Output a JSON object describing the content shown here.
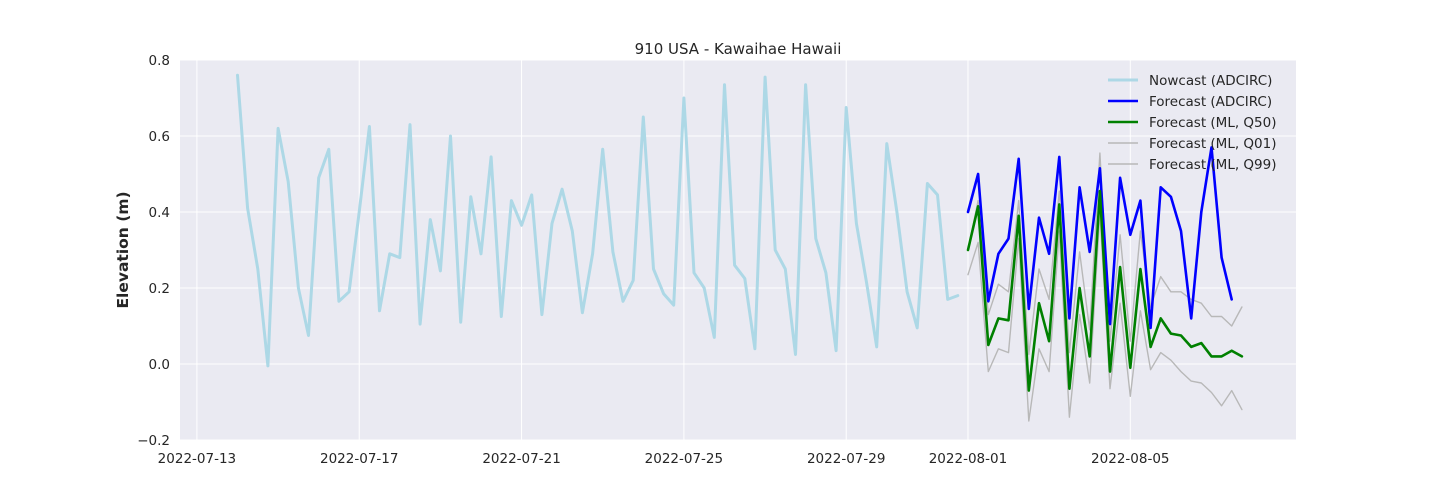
{
  "chart_data": {
    "type": "line",
    "title": "910 USA - Kawaihae Hawaii",
    "xlabel": "",
    "ylabel": "Elevation (m)",
    "x_type": "date",
    "xlim": [
      "2022-07-12 14:00",
      "2022-08-09 02:00"
    ],
    "ylim": [
      -0.2,
      0.8
    ],
    "grid": true,
    "legend_position": "top-right",
    "x_ticks": [
      {
        "value": "2022-07-13 00:00",
        "label": "2022-07-13"
      },
      {
        "value": "2022-07-17 00:00",
        "label": "2022-07-17"
      },
      {
        "value": "2022-07-21 00:00",
        "label": "2022-07-21"
      },
      {
        "value": "2022-07-25 00:00",
        "label": "2022-07-25"
      },
      {
        "value": "2022-07-29 00:00",
        "label": "2022-07-29"
      },
      {
        "value": "2022-08-01 00:00",
        "label": "2022-08-01"
      },
      {
        "value": "2022-08-05 00:00",
        "label": "2022-08-05"
      }
    ],
    "y_ticks": [
      {
        "value": -0.2,
        "label": "−0.2"
      },
      {
        "value": 0.0,
        "label": "0.0"
      },
      {
        "value": 0.2,
        "label": "0.2"
      },
      {
        "value": 0.4,
        "label": "0.4"
      },
      {
        "value": 0.6,
        "label": "0.6"
      },
      {
        "value": 0.8,
        "label": "0.8"
      }
    ],
    "colors": {
      "background": "#eaeaf2",
      "grid": "#ffffff",
      "nowcast": "#add8e6",
      "forecast_adcirc": "#0000ff",
      "forecast_q50": "#008000",
      "forecast_band": "#b8b8b8"
    },
    "series": [
      {
        "name": "Nowcast (ADCIRC)",
        "color": "#add8e6",
        "width": 3,
        "points": [
          [
            "2022-07-14 00:00",
            0.76
          ],
          [
            "2022-07-14 06:00",
            0.41
          ],
          [
            "2022-07-14 12:00",
            0.25
          ],
          [
            "2022-07-14 18:00",
            -0.005
          ],
          [
            "2022-07-15 00:00",
            0.62
          ],
          [
            "2022-07-15 06:00",
            0.48
          ],
          [
            "2022-07-15 12:00",
            0.2
          ],
          [
            "2022-07-15 18:00",
            0.075
          ],
          [
            "2022-07-16 00:00",
            0.49
          ],
          [
            "2022-07-16 06:00",
            0.565
          ],
          [
            "2022-07-16 12:00",
            0.165
          ],
          [
            "2022-07-16 18:00",
            0.19
          ],
          [
            "2022-07-17 00:00",
            0.4
          ],
          [
            "2022-07-17 06:00",
            0.625
          ],
          [
            "2022-07-17 12:00",
            0.14
          ],
          [
            "2022-07-17 18:00",
            0.29
          ],
          [
            "2022-07-18 00:00",
            0.28
          ],
          [
            "2022-07-18 06:00",
            0.63
          ],
          [
            "2022-07-18 12:00",
            0.105
          ],
          [
            "2022-07-18 18:00",
            0.38
          ],
          [
            "2022-07-19 00:00",
            0.245
          ],
          [
            "2022-07-19 06:00",
            0.6
          ],
          [
            "2022-07-19 12:00",
            0.11
          ],
          [
            "2022-07-19 18:00",
            0.44
          ],
          [
            "2022-07-20 00:00",
            0.29
          ],
          [
            "2022-07-20 06:00",
            0.545
          ],
          [
            "2022-07-20 12:00",
            0.125
          ],
          [
            "2022-07-20 18:00",
            0.43
          ],
          [
            "2022-07-21 00:00",
            0.365
          ],
          [
            "2022-07-21 06:00",
            0.445
          ],
          [
            "2022-07-21 12:00",
            0.13
          ],
          [
            "2022-07-21 18:00",
            0.37
          ],
          [
            "2022-07-22 00:00",
            0.46
          ],
          [
            "2022-07-22 06:00",
            0.35
          ],
          [
            "2022-07-22 12:00",
            0.135
          ],
          [
            "2022-07-22 18:00",
            0.29
          ],
          [
            "2022-07-23 00:00",
            0.565
          ],
          [
            "2022-07-23 06:00",
            0.295
          ],
          [
            "2022-07-23 12:00",
            0.165
          ],
          [
            "2022-07-23 18:00",
            0.22
          ],
          [
            "2022-07-24 00:00",
            0.65
          ],
          [
            "2022-07-24 06:00",
            0.25
          ],
          [
            "2022-07-24 12:00",
            0.185
          ],
          [
            "2022-07-24 18:00",
            0.155
          ],
          [
            "2022-07-25 00:00",
            0.7
          ],
          [
            "2022-07-25 06:00",
            0.24
          ],
          [
            "2022-07-25 12:00",
            0.2
          ],
          [
            "2022-07-25 18:00",
            0.07
          ],
          [
            "2022-07-26 00:00",
            0.735
          ],
          [
            "2022-07-26 06:00",
            0.26
          ],
          [
            "2022-07-26 12:00",
            0.225
          ],
          [
            "2022-07-26 18:00",
            0.04
          ],
          [
            "2022-07-27 00:00",
            0.755
          ],
          [
            "2022-07-27 06:00",
            0.3
          ],
          [
            "2022-07-27 12:00",
            0.25
          ],
          [
            "2022-07-27 18:00",
            0.025
          ],
          [
            "2022-07-28 00:00",
            0.735
          ],
          [
            "2022-07-28 06:00",
            0.33
          ],
          [
            "2022-07-28 12:00",
            0.24
          ],
          [
            "2022-07-28 18:00",
            0.035
          ],
          [
            "2022-07-29 00:00",
            0.675
          ],
          [
            "2022-07-29 06:00",
            0.37
          ],
          [
            "2022-07-29 12:00",
            0.215
          ],
          [
            "2022-07-29 18:00",
            0.045
          ],
          [
            "2022-07-30 00:00",
            0.58
          ],
          [
            "2022-07-30 06:00",
            0.4
          ],
          [
            "2022-07-30 12:00",
            0.19
          ],
          [
            "2022-07-30 18:00",
            0.095
          ],
          [
            "2022-07-31 00:00",
            0.475
          ],
          [
            "2022-07-31 06:00",
            0.445
          ],
          [
            "2022-07-31 12:00",
            0.17
          ],
          [
            "2022-07-31 18:00",
            0.18
          ]
        ]
      },
      {
        "name": "Forecast (ADCIRC)",
        "color": "#0000ff",
        "width": 2.6,
        "points": [
          [
            "2022-08-01 00:00",
            0.4
          ],
          [
            "2022-08-01 06:00",
            0.5
          ],
          [
            "2022-08-01 12:00",
            0.165
          ],
          [
            "2022-08-01 18:00",
            0.29
          ],
          [
            "2022-08-02 00:00",
            0.33
          ],
          [
            "2022-08-02 06:00",
            0.54
          ],
          [
            "2022-08-02 12:00",
            0.145
          ],
          [
            "2022-08-02 18:00",
            0.385
          ],
          [
            "2022-08-03 00:00",
            0.29
          ],
          [
            "2022-08-03 06:00",
            0.545
          ],
          [
            "2022-08-03 12:00",
            0.12
          ],
          [
            "2022-08-03 18:00",
            0.465
          ],
          [
            "2022-08-04 00:00",
            0.295
          ],
          [
            "2022-08-04 06:00",
            0.515
          ],
          [
            "2022-08-04 12:00",
            0.105
          ],
          [
            "2022-08-04 18:00",
            0.49
          ],
          [
            "2022-08-05 00:00",
            0.34
          ],
          [
            "2022-08-05 06:00",
            0.43
          ],
          [
            "2022-08-05 12:00",
            0.095
          ],
          [
            "2022-08-05 18:00",
            0.465
          ],
          [
            "2022-08-06 00:00",
            0.44
          ],
          [
            "2022-08-06 06:00",
            0.35
          ],
          [
            "2022-08-06 12:00",
            0.12
          ],
          [
            "2022-08-06 18:00",
            0.4
          ],
          [
            "2022-08-07 00:00",
            0.57
          ],
          [
            "2022-08-07 06:00",
            0.28
          ],
          [
            "2022-08-07 12:00",
            0.17
          ]
        ]
      },
      {
        "name": "Forecast (ML, Q50)",
        "color": "#008000",
        "width": 2.6,
        "points": [
          [
            "2022-08-01 00:00",
            0.3
          ],
          [
            "2022-08-01 06:00",
            0.415
          ],
          [
            "2022-08-01 12:00",
            0.05
          ],
          [
            "2022-08-01 18:00",
            0.12
          ],
          [
            "2022-08-02 00:00",
            0.115
          ],
          [
            "2022-08-02 06:00",
            0.39
          ],
          [
            "2022-08-02 12:00",
            -0.07
          ],
          [
            "2022-08-02 18:00",
            0.16
          ],
          [
            "2022-08-03 00:00",
            0.06
          ],
          [
            "2022-08-03 06:00",
            0.42
          ],
          [
            "2022-08-03 12:00",
            -0.065
          ],
          [
            "2022-08-03 18:00",
            0.2
          ],
          [
            "2022-08-04 00:00",
            0.02
          ],
          [
            "2022-08-04 06:00",
            0.455
          ],
          [
            "2022-08-04 12:00",
            -0.02
          ],
          [
            "2022-08-04 18:00",
            0.255
          ],
          [
            "2022-08-05 00:00",
            -0.01
          ],
          [
            "2022-08-05 06:00",
            0.25
          ],
          [
            "2022-08-05 12:00",
            0.045
          ],
          [
            "2022-08-05 18:00",
            0.12
          ],
          [
            "2022-08-06 00:00",
            0.08
          ],
          [
            "2022-08-06 06:00",
            0.075
          ],
          [
            "2022-08-06 12:00",
            0.045
          ],
          [
            "2022-08-06 18:00",
            0.055
          ],
          [
            "2022-08-07 00:00",
            0.02
          ],
          [
            "2022-08-07 06:00",
            0.02
          ],
          [
            "2022-08-07 12:00",
            0.035
          ],
          [
            "2022-08-07 18:00",
            0.02
          ]
        ]
      },
      {
        "name": "Forecast (ML, Q01)",
        "color": "#b8b8b8",
        "width": 1.4,
        "points": [
          [
            "2022-08-01 00:00",
            0.235
          ],
          [
            "2022-08-01 06:00",
            0.32
          ],
          [
            "2022-08-01 12:00",
            -0.02
          ],
          [
            "2022-08-01 18:00",
            0.04
          ],
          [
            "2022-08-02 00:00",
            0.03
          ],
          [
            "2022-08-02 06:00",
            0.33
          ],
          [
            "2022-08-02 12:00",
            -0.15
          ],
          [
            "2022-08-02 18:00",
            0.04
          ],
          [
            "2022-08-03 00:00",
            -0.02
          ],
          [
            "2022-08-03 06:00",
            0.35
          ],
          [
            "2022-08-03 12:00",
            -0.14
          ],
          [
            "2022-08-03 18:00",
            0.13
          ],
          [
            "2022-08-04 00:00",
            -0.05
          ],
          [
            "2022-08-04 06:00",
            0.4
          ],
          [
            "2022-08-04 12:00",
            -0.065
          ],
          [
            "2022-08-04 18:00",
            0.16
          ],
          [
            "2022-08-05 00:00",
            -0.085
          ],
          [
            "2022-08-05 06:00",
            0.14
          ],
          [
            "2022-08-05 12:00",
            -0.015
          ],
          [
            "2022-08-05 18:00",
            0.03
          ],
          [
            "2022-08-06 00:00",
            0.01
          ],
          [
            "2022-08-06 06:00",
            -0.02
          ],
          [
            "2022-08-06 12:00",
            -0.045
          ],
          [
            "2022-08-06 18:00",
            -0.05
          ],
          [
            "2022-08-07 00:00",
            -0.075
          ],
          [
            "2022-08-07 06:00",
            -0.11
          ],
          [
            "2022-08-07 12:00",
            -0.07
          ],
          [
            "2022-08-07 18:00",
            -0.12
          ]
        ]
      },
      {
        "name": "Forecast (ML, Q99)",
        "color": "#b8b8b8",
        "width": 1.4,
        "points": [
          [
            "2022-08-01 00:00",
            0.3
          ],
          [
            "2022-08-01 06:00",
            0.43
          ],
          [
            "2022-08-01 12:00",
            0.13
          ],
          [
            "2022-08-01 18:00",
            0.21
          ],
          [
            "2022-08-02 00:00",
            0.19
          ],
          [
            "2022-08-02 06:00",
            0.43
          ],
          [
            "2022-08-02 12:00",
            0.025
          ],
          [
            "2022-08-02 18:00",
            0.25
          ],
          [
            "2022-08-03 00:00",
            0.17
          ],
          [
            "2022-08-03 06:00",
            0.455
          ],
          [
            "2022-08-03 12:00",
            0.03
          ],
          [
            "2022-08-03 18:00",
            0.295
          ],
          [
            "2022-08-04 00:00",
            0.09
          ],
          [
            "2022-08-04 06:00",
            0.555
          ],
          [
            "2022-08-04 12:00",
            0.06
          ],
          [
            "2022-08-04 18:00",
            0.34
          ],
          [
            "2022-08-05 00:00",
            0.06
          ],
          [
            "2022-08-05 06:00",
            0.35
          ],
          [
            "2022-08-05 12:00",
            0.15
          ],
          [
            "2022-08-05 18:00",
            0.23
          ],
          [
            "2022-08-06 00:00",
            0.19
          ],
          [
            "2022-08-06 06:00",
            0.19
          ],
          [
            "2022-08-06 12:00",
            0.17
          ],
          [
            "2022-08-06 18:00",
            0.16
          ],
          [
            "2022-08-07 00:00",
            0.125
          ],
          [
            "2022-08-07 06:00",
            0.125
          ],
          [
            "2022-08-07 12:00",
            0.1
          ],
          [
            "2022-08-07 18:00",
            0.15
          ]
        ]
      }
    ]
  }
}
